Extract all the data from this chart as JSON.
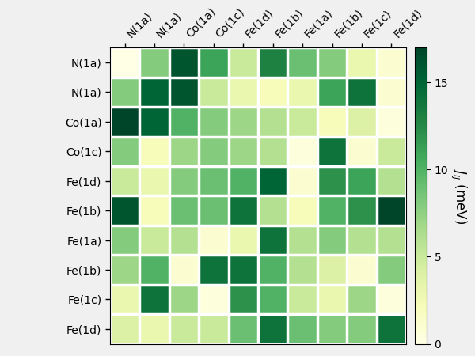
{
  "labels": [
    "N(1a)",
    "N(1a)",
    "Co(1a)",
    "Co(1c)",
    "Fe(1d)",
    "Fe(1b)",
    "Fe(1a)",
    "Fe(1b)",
    "Fe(1c)",
    "Fe(1d)"
  ],
  "matrix": [
    [
      0.0,
      8.0,
      16.0,
      11.0,
      5.0,
      13.0,
      9.0,
      8.0,
      3.0,
      1.0
    ],
    [
      8.0,
      15.0,
      16.0,
      5.0,
      3.0,
      2.0,
      3.0,
      11.0,
      14.0,
      1.0
    ],
    [
      17.0,
      15.0,
      10.0,
      8.0,
      7.0,
      6.0,
      5.0,
      2.0,
      4.0,
      0.5
    ],
    [
      8.0,
      2.0,
      7.0,
      8.0,
      7.0,
      6.0,
      0.5,
      14.0,
      1.0,
      5.0
    ],
    [
      5.0,
      3.0,
      8.0,
      9.0,
      10.0,
      15.0,
      1.0,
      12.0,
      11.0,
      6.0
    ],
    [
      16.0,
      2.0,
      9.0,
      9.0,
      14.0,
      6.0,
      2.0,
      10.0,
      12.0,
      17.0
    ],
    [
      8.0,
      5.0,
      6.0,
      1.0,
      3.0,
      14.0,
      6.0,
      8.0,
      6.0,
      6.0
    ],
    [
      7.0,
      10.0,
      1.0,
      14.0,
      14.0,
      10.0,
      6.0,
      4.0,
      1.0,
      8.0
    ],
    [
      3.0,
      14.0,
      7.0,
      0.5,
      12.0,
      10.0,
      5.0,
      3.0,
      7.0,
      0.5
    ],
    [
      4.0,
      3.0,
      5.0,
      5.0,
      9.0,
      14.0,
      9.0,
      8.0,
      8.0,
      14.0
    ]
  ],
  "colormap": "YlGn",
  "vmin": 0,
  "vmax": 17,
  "colorbar_label": "$J_{ij}$ (meV)",
  "colorbar_ticks": [
    0,
    5,
    10,
    15
  ],
  "figsize": [
    6.0,
    4.5
  ],
  "dpi": 100,
  "style": "default"
}
